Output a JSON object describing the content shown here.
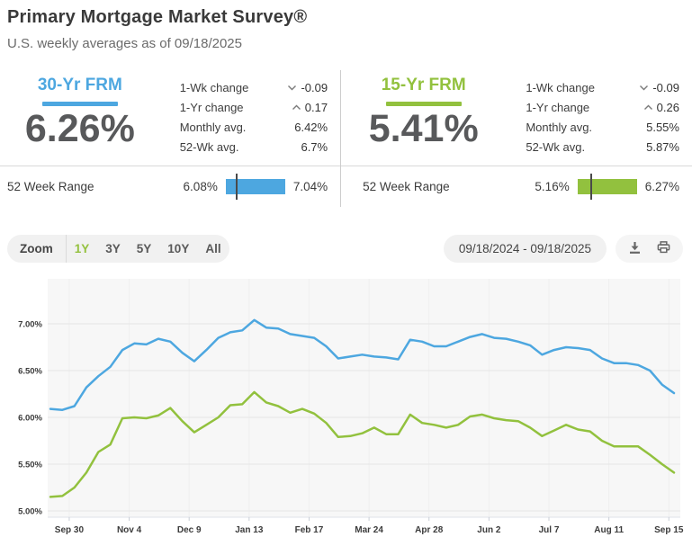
{
  "header": {
    "title": "Primary Mortgage Market Survey®",
    "subtitle": "U.S. weekly averages as of 09/18/2025"
  },
  "panels": [
    {
      "name": "30-Yr FRM",
      "rate": "6.26%",
      "accent": "#4da7e0",
      "stats": [
        {
          "label": "1-Wk change",
          "value": "-0.09",
          "icon": "chevron-down"
        },
        {
          "label": "1-Yr change",
          "value": "0.17",
          "icon": "chevron-up"
        },
        {
          "label": "Monthly avg.",
          "value": "6.42%"
        },
        {
          "label": "52-Wk avg.",
          "value": "6.7%"
        }
      ],
      "range_label": "52 Week Range",
      "range_low": "6.08%",
      "range_high": "7.04%"
    },
    {
      "name": "15-Yr FRM",
      "rate": "5.41%",
      "accent": "#92c13e",
      "stats": [
        {
          "label": "1-Wk change",
          "value": "-0.09",
          "icon": "chevron-down"
        },
        {
          "label": "1-Yr change",
          "value": "0.26",
          "icon": "chevron-up"
        },
        {
          "label": "Monthly avg.",
          "value": "5.55%"
        },
        {
          "label": "52-Wk avg.",
          "value": "5.87%"
        }
      ],
      "range_label": "52 Week Range",
      "range_low": "5.16%",
      "range_high": "6.27%"
    }
  ],
  "toolbar": {
    "zoom_label": "Zoom",
    "options": [
      "1Y",
      "3Y",
      "5Y",
      "10Y",
      "All"
    ],
    "active": "1Y",
    "active_color": "#94c13e",
    "date_range": "09/18/2024 - 09/18/2025",
    "icons": [
      "download-icon",
      "print-icon"
    ]
  },
  "chart_data": {
    "type": "line",
    "title": "",
    "xlabel": "",
    "ylabel": "",
    "x_unit": "weekly (Sep 18, 2024 - Sep 18, 2025)",
    "points_per_series": 53,
    "grid": true,
    "legend": "none",
    "plot_bg": "#f7f7f7",
    "ylim": [
      4.9,
      7.45
    ],
    "yticks": [
      {
        "label": "5.00%",
        "value": 5.0
      },
      {
        "label": "5.50%",
        "value": 5.5
      },
      {
        "label": "6.00%",
        "value": 6.0
      },
      {
        "label": "6.50%",
        "value": 6.5
      },
      {
        "label": "7.00%",
        "value": 7.0
      }
    ],
    "xticks": [
      {
        "label": "Sep 30",
        "week": 1.57
      },
      {
        "label": "Nov 4",
        "week": 6.57
      },
      {
        "label": "Dec 9",
        "week": 11.57
      },
      {
        "label": "Jan 13",
        "week": 16.57
      },
      {
        "label": "Feb 17",
        "week": 21.57
      },
      {
        "label": "Mar 24",
        "week": 26.57
      },
      {
        "label": "Apr 28",
        "week": 31.57
      },
      {
        "label": "Jun 2",
        "week": 36.57
      },
      {
        "label": "Jul 7",
        "week": 41.57
      },
      {
        "label": "Aug 11",
        "week": 46.57
      },
      {
        "label": "Sep 15",
        "week": 51.57
      }
    ],
    "series": [
      {
        "name": "30-Yr FRM",
        "color": "#4da7e0",
        "values": [
          6.09,
          6.08,
          6.12,
          6.32,
          6.44,
          6.54,
          6.72,
          6.79,
          6.78,
          6.84,
          6.81,
          6.69,
          6.6,
          6.72,
          6.85,
          6.91,
          6.93,
          7.04,
          6.96,
          6.95,
          6.89,
          6.87,
          6.85,
          6.76,
          6.63,
          6.65,
          6.67,
          6.65,
          6.64,
          6.62,
          6.83,
          6.81,
          6.76,
          6.76,
          6.81,
          6.86,
          6.89,
          6.85,
          6.84,
          6.81,
          6.77,
          6.67,
          6.72,
          6.75,
          6.74,
          6.72,
          6.63,
          6.58,
          6.58,
          6.56,
          6.5,
          6.35,
          6.26
        ]
      },
      {
        "name": "15-Yr FRM",
        "color": "#92c13e",
        "values": [
          5.15,
          5.16,
          5.25,
          5.41,
          5.63,
          5.71,
          5.99,
          6.0,
          5.99,
          6.02,
          6.1,
          5.96,
          5.84,
          5.92,
          6.0,
          6.13,
          6.14,
          6.27,
          6.16,
          6.12,
          6.05,
          6.09,
          6.04,
          5.94,
          5.79,
          5.8,
          5.83,
          5.89,
          5.82,
          5.82,
          6.03,
          5.94,
          5.92,
          5.89,
          5.92,
          6.01,
          6.03,
          5.99,
          5.97,
          5.96,
          5.89,
          5.8,
          5.86,
          5.92,
          5.87,
          5.85,
          5.75,
          5.69,
          5.69,
          5.69,
          5.6,
          5.5,
          5.41
        ]
      }
    ]
  }
}
